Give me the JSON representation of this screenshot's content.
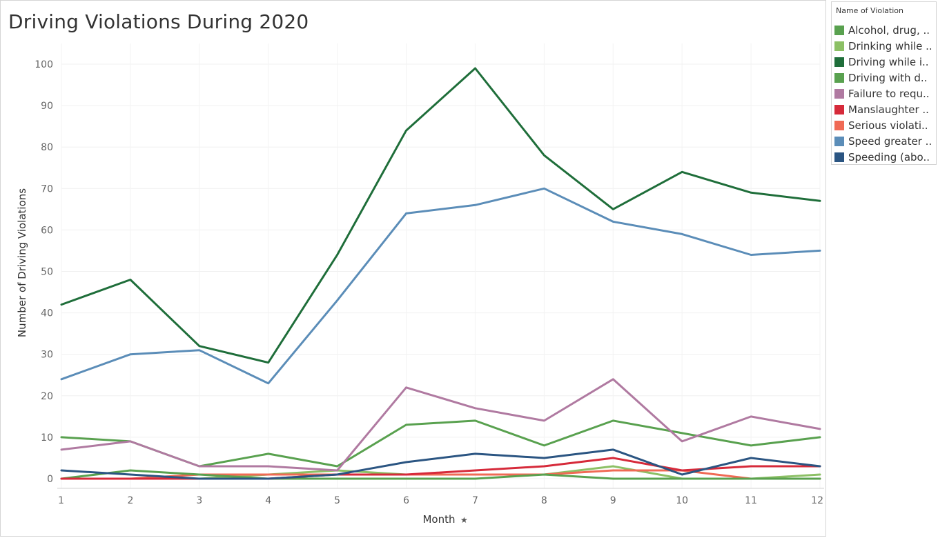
{
  "title": "Driving Violations During 2020",
  "legend": {
    "title": "Name of Violation",
    "items": [
      {
        "label": "Alcohol, drug, ..",
        "color": "#59a14f"
      },
      {
        "label": "Drinking while ..",
        "color": "#8cc065"
      },
      {
        "label": "Driving while i..",
        "color": "#1f6e3a"
      },
      {
        "label": "Driving with d..",
        "color": "#59a14f"
      },
      {
        "label": "Failure to requ..",
        "color": "#b07aa1"
      },
      {
        "label": "Manslaughter ..",
        "color": "#d62a3a"
      },
      {
        "label": "Serious violati..",
        "color": "#f06a55"
      },
      {
        "label": "Speed greater ..",
        "color": "#5b8db8"
      },
      {
        "label": "Speeding (abo..",
        "color": "#2b5582"
      }
    ]
  },
  "chart_data": {
    "type": "line",
    "title": "Driving Violations During 2020",
    "xlabel": "Month",
    "ylabel": "Number of Driving Violations",
    "x": [
      1,
      2,
      3,
      4,
      5,
      6,
      7,
      8,
      9,
      10,
      11,
      12
    ],
    "xlim": [
      1,
      12
    ],
    "ylim": [
      0,
      100
    ],
    "yticks": [
      0,
      10,
      20,
      30,
      40,
      50,
      60,
      70,
      80,
      90,
      100
    ],
    "grid": true,
    "legend_position": "right",
    "series": [
      {
        "name": "Alcohol, drug, ..",
        "color": "#59a14f",
        "values": [
          0,
          2,
          1,
          0,
          0,
          0,
          0,
          1,
          0,
          0,
          0,
          0
        ]
      },
      {
        "name": "Drinking while ..",
        "color": "#8cc065",
        "values": [
          0,
          0,
          0,
          1,
          2,
          1,
          1,
          1,
          3,
          0,
          0,
          1
        ]
      },
      {
        "name": "Driving while i..",
        "color": "#1f6e3a",
        "values": [
          42,
          48,
          32,
          28,
          54,
          84,
          99,
          78,
          65,
          74,
          69,
          67
        ]
      },
      {
        "name": "Driving with d..",
        "color": "#59a14f",
        "values": [
          10,
          9,
          3,
          6,
          3,
          13,
          14,
          8,
          14,
          11,
          8,
          10
        ]
      },
      {
        "name": "Failure to requ..",
        "color": "#b07aa1",
        "values": [
          7,
          9,
          3,
          3,
          2,
          22,
          17,
          14,
          24,
          9,
          15,
          12
        ]
      },
      {
        "name": "Manslaughter ..",
        "color": "#d62a3a",
        "values": [
          0,
          0,
          0,
          0,
          1,
          1,
          2,
          3,
          5,
          2,
          3,
          3
        ]
      },
      {
        "name": "Serious violati..",
        "color": "#f06a55",
        "values": [
          0,
          0,
          1,
          1,
          1,
          1,
          1,
          1,
          2,
          2,
          0,
          0
        ]
      },
      {
        "name": "Speed greater ..",
        "color": "#5b8db8",
        "values": [
          24,
          30,
          31,
          23,
          43,
          64,
          66,
          70,
          62,
          59,
          54,
          55
        ]
      },
      {
        "name": "Speeding (abo..",
        "color": "#2b5582",
        "values": [
          2,
          1,
          0,
          0,
          1,
          4,
          6,
          5,
          7,
          1,
          5,
          3
        ]
      }
    ]
  }
}
